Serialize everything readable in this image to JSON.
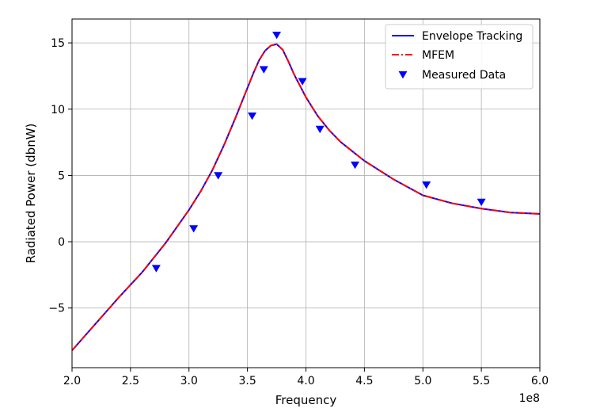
{
  "chart_data": {
    "type": "line",
    "xlabel": "Frequency",
    "ylabel": "Radiated Power (dbnW)",
    "x_offset_label": "1e8",
    "xlim": [
      2.0,
      6.0
    ],
    "ylim": [
      -9.5,
      16.8
    ],
    "grid": true,
    "legend_position": "top-right",
    "x_ticks": [
      2.0,
      2.5,
      3.0,
      3.5,
      4.0,
      4.5,
      5.0,
      5.5,
      6.0
    ],
    "x_tick_labels": [
      "2.0",
      "2.5",
      "3.0",
      "3.5",
      "4.0",
      "4.5",
      "5.0",
      "5.5",
      "6.0"
    ],
    "y_ticks": [
      -5,
      0,
      5,
      10,
      15
    ],
    "y_tick_labels": [
      "−5",
      "0",
      "5",
      "10",
      "15"
    ],
    "series": [
      {
        "name": "Envelope Tracking",
        "style": "solid",
        "color": "#0000ff",
        "x": [
          2.0,
          2.2,
          2.4,
          2.6,
          2.8,
          3.0,
          3.1,
          3.2,
          3.3,
          3.4,
          3.5,
          3.55,
          3.6,
          3.65,
          3.7,
          3.75,
          3.8,
          3.85,
          3.9,
          4.0,
          4.1,
          4.2,
          4.3,
          4.4,
          4.5,
          4.75,
          5.0,
          5.25,
          5.5,
          5.75,
          6.0
        ],
        "y": [
          -8.2,
          -6.2,
          -4.2,
          -2.3,
          -0.1,
          2.4,
          3.8,
          5.4,
          7.3,
          9.4,
          11.6,
          12.7,
          13.7,
          14.4,
          14.8,
          14.9,
          14.5,
          13.6,
          12.6,
          10.9,
          9.5,
          8.4,
          7.5,
          6.8,
          6.1,
          4.7,
          3.5,
          2.9,
          2.5,
          2.2,
          2.1
        ]
      },
      {
        "name": "MFEM",
        "style": "dashdot",
        "color": "#ff0000",
        "x": [
          2.0,
          2.2,
          2.4,
          2.6,
          2.8,
          3.0,
          3.1,
          3.2,
          3.3,
          3.4,
          3.5,
          3.55,
          3.6,
          3.65,
          3.7,
          3.75,
          3.8,
          3.85,
          3.9,
          4.0,
          4.1,
          4.2,
          4.3,
          4.4,
          4.5,
          4.75,
          5.0,
          5.25,
          5.5,
          5.75,
          6.0
        ],
        "y": [
          -8.2,
          -6.2,
          -4.2,
          -2.3,
          -0.1,
          2.4,
          3.8,
          5.4,
          7.3,
          9.4,
          11.6,
          12.7,
          13.7,
          14.4,
          14.8,
          14.9,
          14.5,
          13.6,
          12.6,
          10.9,
          9.5,
          8.4,
          7.5,
          6.8,
          6.1,
          4.7,
          3.5,
          2.9,
          2.5,
          2.2,
          2.1
        ]
      },
      {
        "name": "Measured Data",
        "style": "marker-triangle-down",
        "color": "#0000ff",
        "x": [
          2.72,
          3.04,
          3.25,
          3.54,
          3.64,
          3.75,
          3.97,
          4.12,
          4.42,
          5.03,
          5.5
        ],
        "y": [
          -2.0,
          1.0,
          5.0,
          9.5,
          13.0,
          15.6,
          12.1,
          8.5,
          5.8,
          4.3,
          3.0
        ]
      }
    ]
  }
}
